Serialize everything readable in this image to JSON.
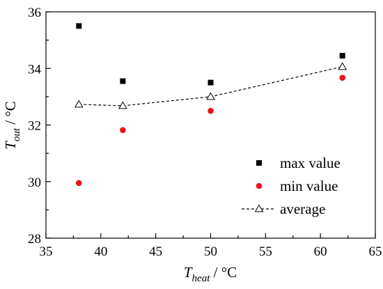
{
  "chart_data": {
    "type": "scatter",
    "xlabel": {
      "symbol": "T",
      "subscript": "heat",
      "unit": " / °C"
    },
    "ylabel": {
      "symbol": "T",
      "subscript": "out",
      "unit": " / °C"
    },
    "xlim": [
      35,
      65
    ],
    "ylim": [
      28,
      36
    ],
    "xticks": [
      35,
      40,
      45,
      50,
      55,
      60,
      65
    ],
    "yticks": [
      28,
      30,
      32,
      34,
      36
    ],
    "grid": false,
    "legend_position": "bottom-right",
    "series": [
      {
        "name": "max value",
        "marker": "square",
        "color": "#000000",
        "line": false,
        "x": [
          38,
          42,
          50,
          62
        ],
        "y": [
          35.5,
          33.55,
          33.5,
          34.45
        ]
      },
      {
        "name": "min value",
        "marker": "circle",
        "color": "#e8141c",
        "line": false,
        "x": [
          38,
          42,
          50,
          62
        ],
        "y": [
          29.95,
          31.82,
          32.5,
          33.67
        ]
      },
      {
        "name": "average",
        "marker": "triangle-open",
        "color": "#000000",
        "line": "dashed",
        "x": [
          38,
          42,
          50,
          62
        ],
        "y": [
          32.73,
          32.68,
          33.0,
          34.06
        ]
      }
    ]
  }
}
